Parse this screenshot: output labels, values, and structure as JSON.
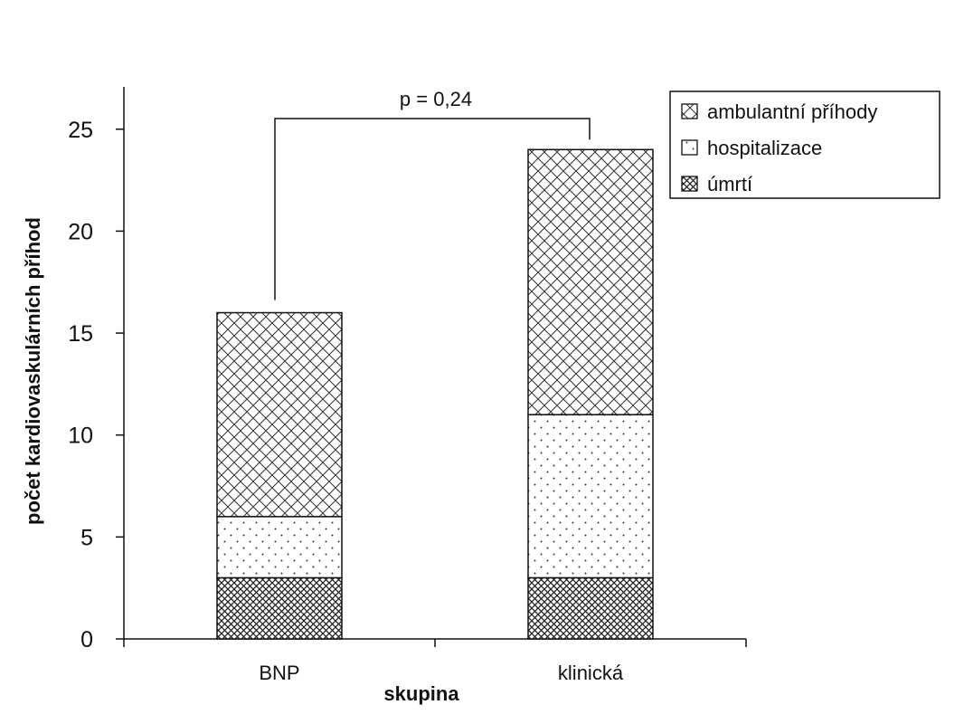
{
  "chart_data": {
    "type": "bar",
    "stacked": true,
    "categories": [
      "BNP",
      "klinická"
    ],
    "series": [
      {
        "name": "úmrtí",
        "values": [
          3,
          3
        ],
        "pattern": "dense-crosshatch"
      },
      {
        "name": "hospitalizace",
        "values": [
          3,
          8
        ],
        "pattern": "dots"
      },
      {
        "name": "ambulantní příhody",
        "values": [
          10,
          13
        ],
        "pattern": "crosshatch"
      }
    ],
    "legend_order": [
      "ambulantní příhody",
      "hospitalizace",
      "úmrtí"
    ],
    "xlabel": "skupina",
    "ylabel": "počet kardiovaskulárních příhod",
    "ylim": [
      0,
      27
    ],
    "yticks": [
      0,
      5,
      10,
      15,
      20,
      25
    ],
    "grid": false,
    "legend_position": "top-right",
    "annotation": {
      "text": "p = 0,24",
      "between": [
        "BNP",
        "klinická"
      ]
    }
  }
}
